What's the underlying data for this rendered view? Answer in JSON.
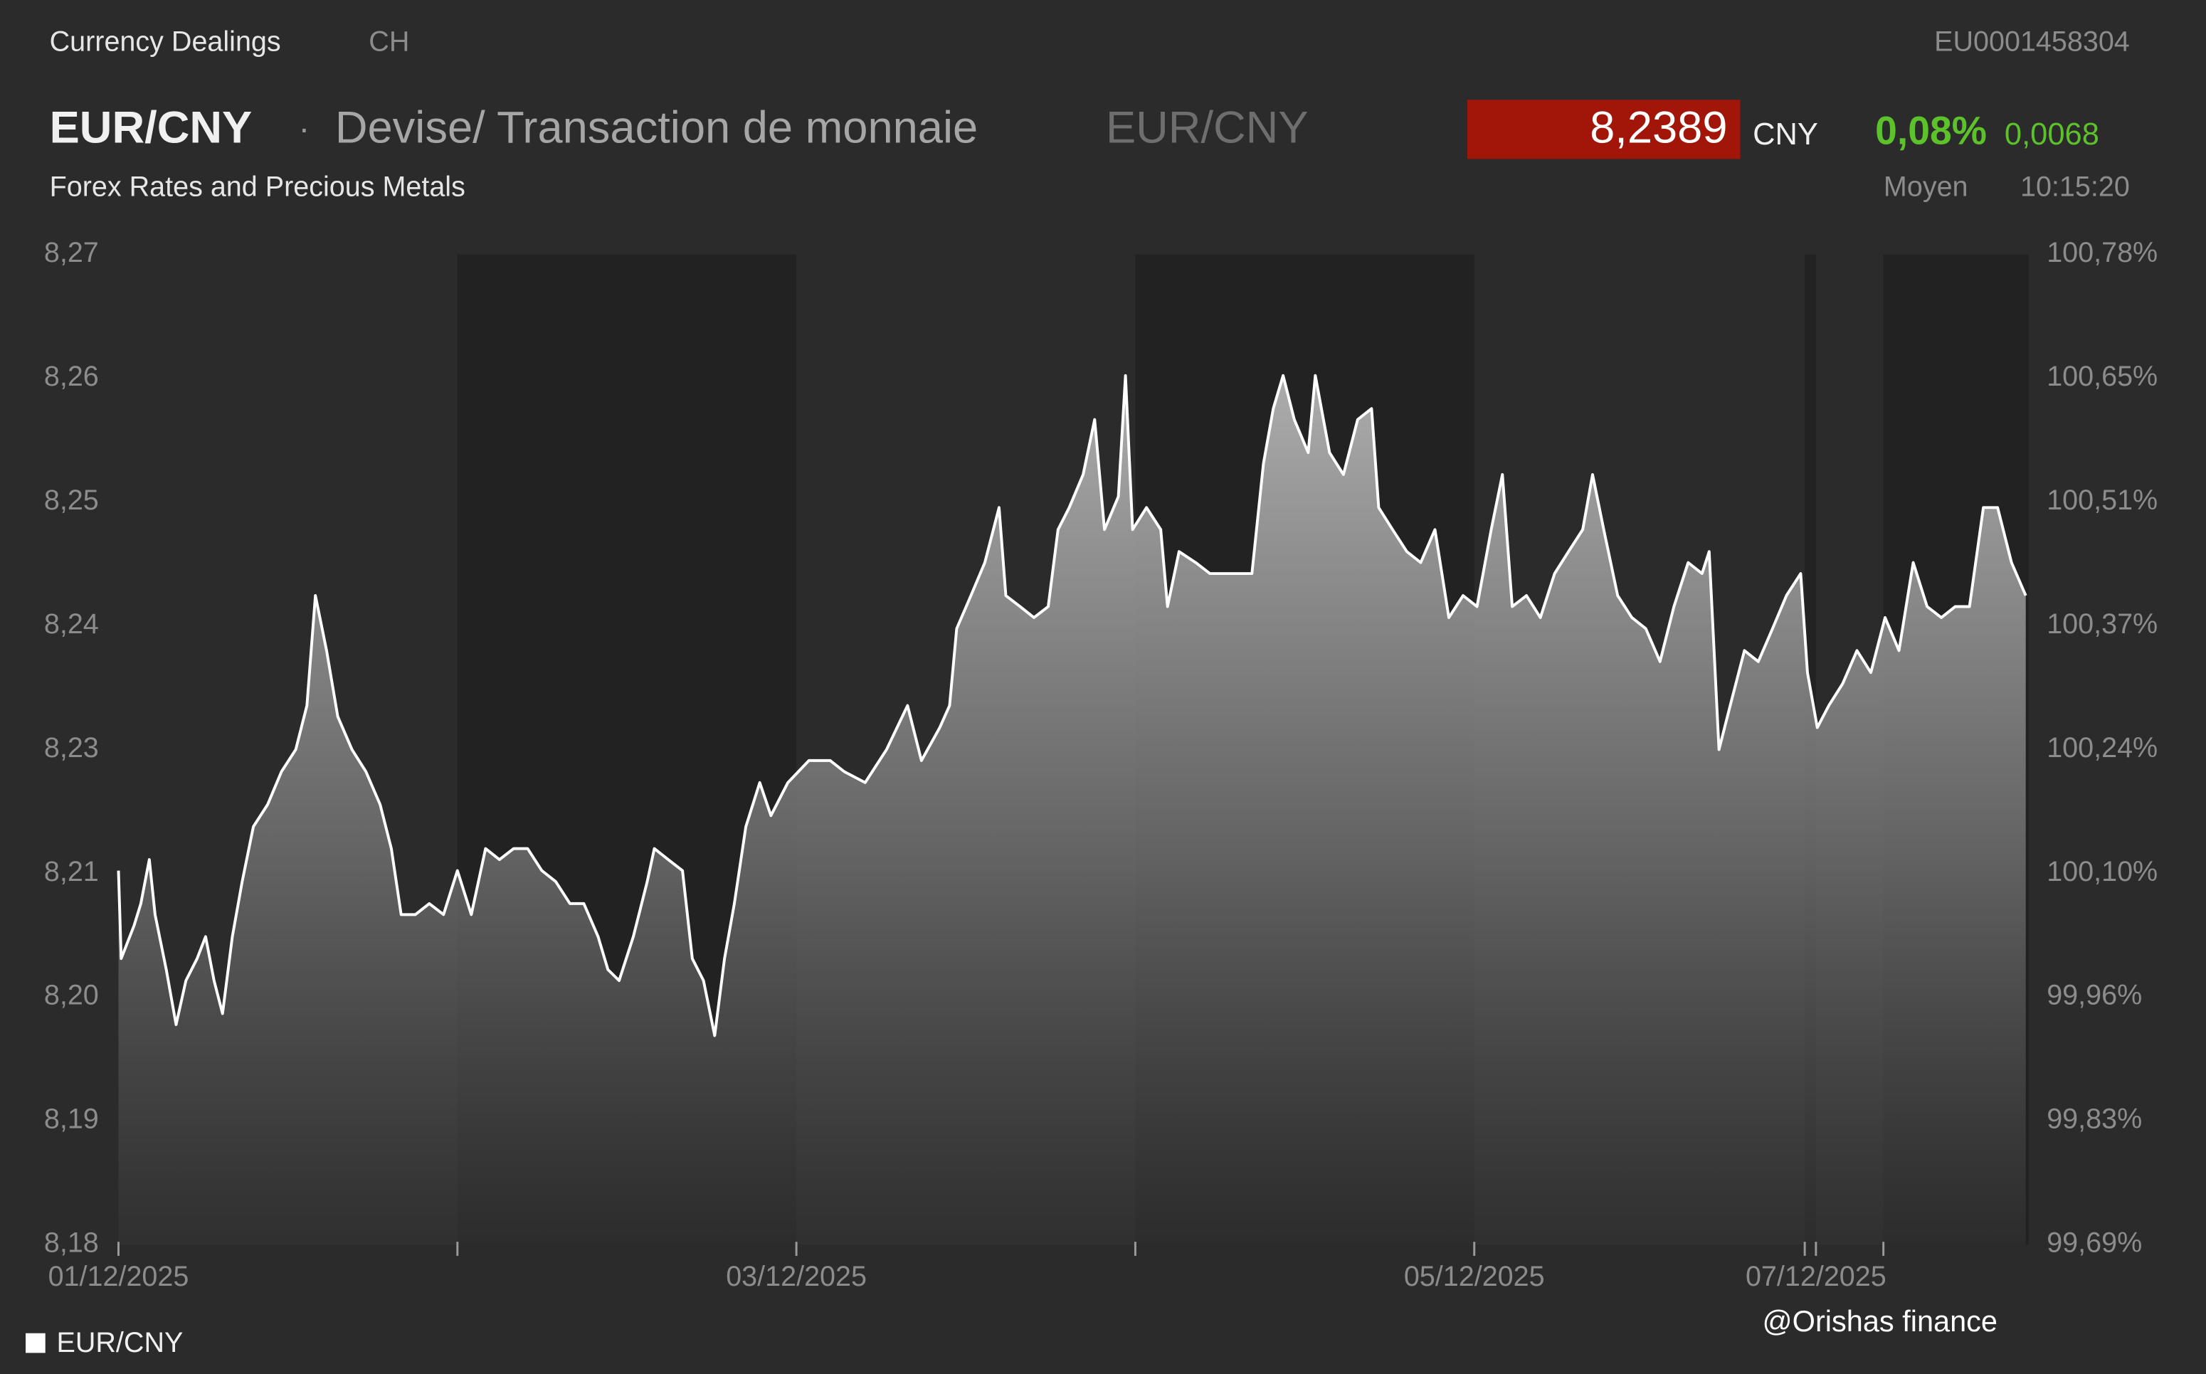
{
  "header": {
    "section": "Currency Dealings",
    "region": "CH",
    "isin": "EU0001458304",
    "symbol": "EUR/CNY",
    "separator": "·",
    "description": "Devise/ Transaction de monnaie",
    "symbol_alt": "EUR/CNY",
    "subtitle": "Forex Rates and Precious Metals",
    "price": "8,2389",
    "currency": "CNY",
    "change_pct": "0,08%",
    "change_abs": "0,0068",
    "price_type": "Moyen",
    "time": "10:15:20"
  },
  "watermark": "@Orishas finance",
  "chart_data": {
    "type": "area",
    "series": [
      {
        "name": "EUR/CNY",
        "color": "#ffffff",
        "x": [
          0,
          0.008,
          0.046,
          0.066,
          0.091,
          0.108,
          0.141,
          0.17,
          0.199,
          0.232,
          0.257,
          0.282,
          0.307,
          0.336,
          0.365,
          0.398,
          0.44,
          0.481,
          0.523,
          0.556,
          0.581,
          0.614,
          0.647,
          0.689,
          0.73,
          0.772,
          0.805,
          0.834,
          0.876,
          0.917,
          0.959,
          1.0,
          1.041,
          1.083,
          1.124,
          1.166,
          1.207,
          1.249,
          1.29,
          1.332,
          1.373,
          1.415,
          1.444,
          1.477,
          1.519,
          1.56,
          1.581,
          1.622,
          1.664,
          1.693,
          1.726,
          1.759,
          1.788,
          1.817,
          1.851,
          1.892,
          1.925,
          1.975,
          2.037,
          2.1,
          2.141,
          2.203,
          2.266,
          2.328,
          2.369,
          2.423,
          2.452,
          2.473,
          2.515,
          2.556,
          2.598,
          2.618,
          2.66,
          2.701,
          2.743,
          2.772,
          2.805,
          2.846,
          2.88,
          2.909,
          2.95,
          2.971,
          2.992,
          3.033,
          3.075,
          3.095,
          3.129,
          3.178,
          3.22,
          3.261,
          3.303,
          3.344,
          3.378,
          3.407,
          3.436,
          3.469,
          3.51,
          3.531,
          3.573,
          3.614,
          3.656,
          3.697,
          3.718,
          3.759,
          3.801,
          3.842,
          3.884,
          3.925,
          3.967,
          4.008,
          4.05,
          4.083,
          4.112,
          4.154,
          4.195,
          4.237,
          4.278,
          4.32,
          4.349,
          4.382,
          4.423,
          4.465,
          4.506,
          4.548,
          4.589,
          4.631,
          4.672,
          4.693,
          4.722,
          4.755,
          4.797,
          4.838,
          4.88,
          4.921,
          4.963,
          4.983,
          5.012,
          5.046,
          5.087,
          5.129,
          5.17,
          5.212,
          5.253,
          5.295,
          5.336,
          5.378,
          5.419,
          5.461,
          5.502,
          5.544,
          5.585,
          5.627
        ],
        "values": [
          8.214,
          8.206,
          8.209,
          8.211,
          8.215,
          8.21,
          8.205,
          8.2,
          8.204,
          8.206,
          8.208,
          8.204,
          8.201,
          8.208,
          8.213,
          8.218,
          8.22,
          8.223,
          8.225,
          8.229,
          8.239,
          8.234,
          8.228,
          8.225,
          8.223,
          8.22,
          8.216,
          8.21,
          8.21,
          8.211,
          8.21,
          8.214,
          8.21,
          8.216,
          8.215,
          8.216,
          8.216,
          8.214,
          8.213,
          8.211,
          8.211,
          8.208,
          8.205,
          8.204,
          8.208,
          8.213,
          8.216,
          8.215,
          8.214,
          8.206,
          8.204,
          8.199,
          8.206,
          8.211,
          8.218,
          8.222,
          8.219,
          8.222,
          8.224,
          8.224,
          8.223,
          8.222,
          8.225,
          8.229,
          8.224,
          8.227,
          8.229,
          8.236,
          8.239,
          8.242,
          8.247,
          8.239,
          8.238,
          8.237,
          8.238,
          8.245,
          8.247,
          8.25,
          8.255,
          8.245,
          8.248,
          8.259,
          8.245,
          8.247,
          8.245,
          8.238,
          8.243,
          8.242,
          8.241,
          8.241,
          8.241,
          8.241,
          8.251,
          8.256,
          8.259,
          8.255,
          8.252,
          8.259,
          8.252,
          8.25,
          8.255,
          8.256,
          8.247,
          8.245,
          8.243,
          8.242,
          8.245,
          8.237,
          8.239,
          8.238,
          8.245,
          8.25,
          8.238,
          8.239,
          8.237,
          8.241,
          8.243,
          8.245,
          8.25,
          8.245,
          8.239,
          8.237,
          8.236,
          8.233,
          8.238,
          8.242,
          8.241,
          8.243,
          8.225,
          8.229,
          8.234,
          8.233,
          8.236,
          8.239,
          8.241,
          8.232,
          8.227,
          8.229,
          8.231,
          8.234,
          8.232,
          8.237,
          8.234,
          8.242,
          8.238,
          8.237,
          8.238,
          8.238,
          8.247,
          8.247,
          8.242,
          8.239
        ]
      }
    ],
    "xlim": [
      0,
      5.635
    ],
    "xticks": [
      {
        "value": 0,
        "label": "01/12/2025"
      },
      {
        "value": 2,
        "label": "03/12/2025"
      },
      {
        "value": 4,
        "label": "05/12/2025"
      },
      {
        "value": 5.008,
        "label": "07/12/2025"
      }
    ],
    "minor_xticks": [
      1,
      3,
      4.975,
      5.207
    ],
    "ylim": [
      8.18,
      8.27
    ],
    "yticks": [
      {
        "value": 8.18,
        "label": "8,18"
      },
      {
        "value": 8.19125,
        "label": "8,19"
      },
      {
        "value": 8.2025,
        "label": "8,20"
      },
      {
        "value": 8.21375,
        "label": "8,21"
      },
      {
        "value": 8.225,
        "label": "8,23"
      },
      {
        "value": 8.23625,
        "label": "8,24"
      },
      {
        "value": 8.2475,
        "label": "8,25"
      },
      {
        "value": 8.25875,
        "label": "8,26"
      },
      {
        "value": 8.27,
        "label": "8,27"
      }
    ],
    "y2lim": [
      99.69,
      100.785
    ],
    "y2ticks": [
      {
        "value": 99.69,
        "label": "99,69%"
      },
      {
        "value": 99.826875,
        "label": "99,83%"
      },
      {
        "value": 99.96375,
        "label": "99,96%"
      },
      {
        "value": 100.100625,
        "label": "100,10%"
      },
      {
        "value": 100.2375,
        "label": "100,24%"
      },
      {
        "value": 100.374375,
        "label": "100,37%"
      },
      {
        "value": 100.51125,
        "label": "100,51%"
      },
      {
        "value": 100.648125,
        "label": "100,65%"
      },
      {
        "value": 100.785,
        "label": "100,78%"
      }
    ],
    "grid": false,
    "legend": "bottom-left"
  }
}
